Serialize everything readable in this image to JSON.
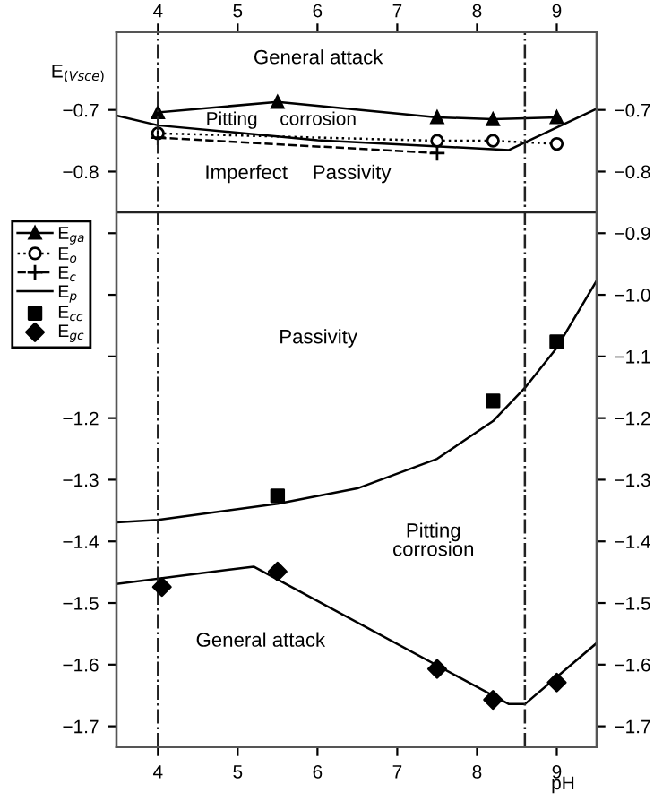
{
  "chart_data": {
    "type": "line",
    "ylabel": "E$_{(Vsce)}$",
    "xlabel": "pH",
    "xlim": [
      3.48,
      9.5
    ],
    "ylim": [
      -1.734,
      -0.574
    ],
    "xticks": [
      4,
      5,
      6,
      7,
      8,
      9
    ],
    "x2lim": [
      3.48,
      9.5
    ],
    "x2ticks": [
      4,
      5,
      6,
      7,
      8,
      9
    ],
    "yticks": [
      {
        "value": -0.7,
        "label": "−0.7"
      },
      {
        "value": -0.8,
        "label": "−0.8"
      },
      {
        "value": -0.9,
        "label": null
      },
      {
        "value": -1.0,
        "label": null
      },
      {
        "value": -1.1,
        "label": null
      },
      {
        "value": -1.2,
        "label": "−1.2"
      },
      {
        "value": -1.3,
        "label": "−1.3"
      },
      {
        "value": -1.4,
        "label": "−1.4"
      },
      {
        "value": -1.5,
        "label": "−1.5"
      },
      {
        "value": -1.6,
        "label": "−1.6"
      },
      {
        "value": -1.7,
        "label": "−1.7"
      }
    ],
    "y2lim": [
      -1.734,
      -0.574
    ],
    "y2ticks": [
      {
        "value": -0.7,
        "label": "−0.7"
      },
      {
        "value": -0.8,
        "label": "−0.8"
      },
      {
        "value": -0.9,
        "label": "−0.9"
      },
      {
        "value": -1.0,
        "label": "−1.0"
      },
      {
        "value": -1.1,
        "label": "−1.1"
      },
      {
        "value": -1.2,
        "label": "−1.2"
      },
      {
        "value": -1.3,
        "label": "−1.3"
      },
      {
        "value": -1.4,
        "label": "−1.4"
      },
      {
        "value": -1.5,
        "label": "−1.5"
      },
      {
        "value": -1.6,
        "label": "−1.6"
      },
      {
        "value": -1.7,
        "label": "−1.7"
      }
    ],
    "grid": false,
    "legend": "left",
    "series": [
      {
        "name": "E$_{ga}$",
        "color": "#000000",
        "marker": "triangle",
        "line_style": "solid",
        "x": [
          4,
          5.5,
          7.5,
          8.2,
          9
        ],
        "values": [
          -0.704,
          -0.687,
          -0.712,
          -0.715,
          -0.712
        ]
      },
      {
        "name": "E$_{o}$",
        "color": "#000000",
        "marker": "circle",
        "line_style": "dotted",
        "x": [
          4,
          7.5,
          8.2,
          9
        ],
        "values": [
          -0.738,
          -0.75,
          -0.75,
          -0.755
        ]
      },
      {
        "name": "E$_{c}$",
        "color": "#000000",
        "marker": "cross",
        "line_style": "dashed",
        "x": [
          4,
          7.5
        ],
        "values": [
          -0.745,
          -0.77
        ]
      },
      {
        "name": "E$_{p}$",
        "color": "#000000",
        "marker": "none",
        "line_style": "solid",
        "x": [
          3.48,
          4,
          5.5,
          6.5,
          7.5,
          8.2,
          8.6,
          9,
          9.5
        ],
        "values": [
          -1.369,
          -1.365,
          -1.339,
          -1.314,
          -1.266,
          -1.205,
          -1.151,
          -1.086,
          -0.977
        ]
      },
      {
        "name": "E$_{cc}$",
        "type": "scatter",
        "color": "#000000",
        "marker": "square",
        "x": [
          5.5,
          8.2,
          9
        ],
        "values": [
          -1.326,
          -1.172,
          -1.076
        ]
      },
      {
        "name": "E$_{gc}$",
        "type": "scatter",
        "color": "#000000",
        "marker": "diamond",
        "x": [
          4.05,
          5.5,
          7.5,
          8.2,
          9
        ],
        "values": [
          -1.474,
          -1.449,
          -1.607,
          -1.657,
          -1.629
        ]
      },
      {
        "color": "#000000",
        "marker": "none",
        "line_style": "solid",
        "x": [
          3.48,
          4,
          6,
          8.4,
          9.5
        ],
        "values": [
          -0.709,
          -0.725,
          -0.749,
          -0.765,
          -0.698
        ]
      },
      {
        "color": "#000000",
        "marker": "none",
        "line_style": "solid",
        "x": [
          3.48,
          5.2,
          8.4,
          8.6,
          9.5
        ],
        "values": [
          -1.469,
          -1.441,
          -1.664,
          -1.664,
          -1.565
        ]
      }
    ],
    "ref_lines": [
      {
        "axis": "y",
        "value": -0.866,
        "line_style": "solid"
      },
      {
        "axis": "x",
        "value": 4,
        "line_style": "dashdot"
      },
      {
        "axis": "x",
        "value": 8.6,
        "line_style": "dashdot"
      }
    ],
    "annotations": [
      "General attack",
      "Pitting",
      "corrosion",
      "Imperfect",
      "Passivity",
      "Passivity",
      "Pitting\ncorrosion",
      "General attack"
    ]
  }
}
